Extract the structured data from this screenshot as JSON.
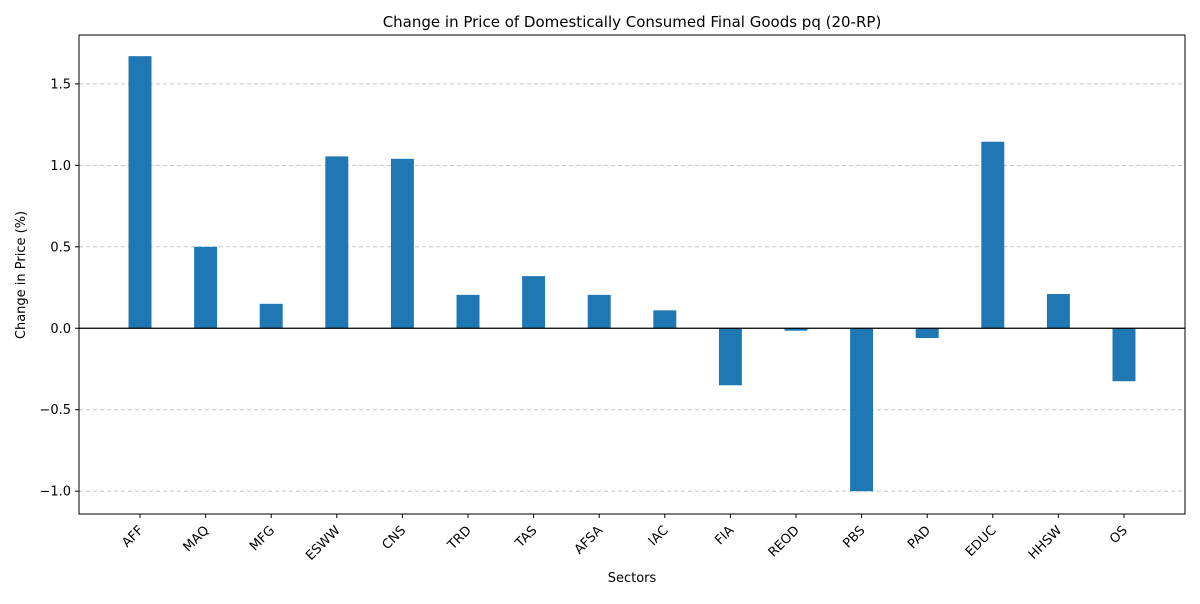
{
  "chart_data": {
    "type": "bar",
    "title": "Change in Price of Domestically Consumed Final Goods pq (20-RP)",
    "xlabel": "Sectors",
    "ylabel": "Change in Price (%)",
    "categories": [
      "AFF",
      "MAQ",
      "MFG",
      "ESWW",
      "CNS",
      "TRD",
      "TAS",
      "AFSA",
      "IAC",
      "FIA",
      "REOD",
      "PBS",
      "PAD",
      "EDUC",
      "HHSW",
      "OS"
    ],
    "values": [
      1.67,
      0.5,
      0.15,
      1.055,
      1.04,
      0.205,
      0.32,
      0.205,
      0.11,
      -0.35,
      -0.015,
      -1.0,
      -0.06,
      1.145,
      0.21,
      -0.325
    ],
    "ylim": [
      -1.14,
      1.8
    ],
    "yticks": [
      -1.0,
      -0.5,
      0.0,
      0.5,
      1.0,
      1.5
    ],
    "ytick_labels": [
      "−1.0",
      "−0.5",
      "0.0",
      "0.5",
      "1.0",
      "1.5"
    ],
    "grid": "y-dashed",
    "zero_line": true,
    "bar_color": "#1f77b4",
    "grid_color": "#c8c8c8",
    "axis_color": "#000000"
  }
}
